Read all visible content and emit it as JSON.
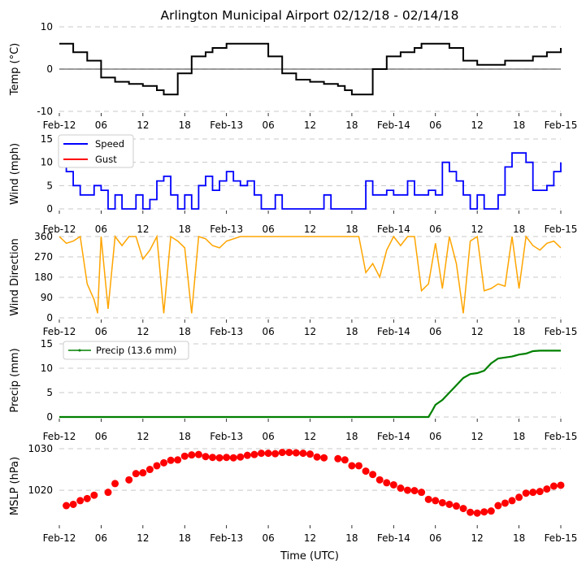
{
  "title": "Arlington Municipal Airport 02/12/18 - 02/14/18",
  "xlabel": "Time (UTC)",
  "time_ticks": [
    "Feb-12",
    "06",
    "12",
    "18",
    "Feb-13",
    "06",
    "12",
    "18",
    "Feb-14",
    "06",
    "12",
    "18",
    "Feb-15"
  ],
  "colors": {
    "temp": "#000000",
    "speed": "#0000ff",
    "gust": "#ff0000",
    "dir": "#ffa500",
    "precip": "#008000",
    "mslp": "#ff0000",
    "grid": "#c8c8c8"
  },
  "chart_data": [
    {
      "type": "line",
      "id": "temp",
      "ylabel": "Temp (°C)",
      "ylim": [
        -10,
        10
      ],
      "yticks": [
        -10,
        0,
        10
      ],
      "hours": [
        0,
        2,
        4,
        6,
        8,
        10,
        12,
        14,
        15,
        17,
        19,
        21,
        22,
        24,
        26,
        28,
        30,
        32,
        34,
        36,
        38,
        40,
        41,
        42,
        43,
        45,
        47,
        49,
        51,
        52,
        54,
        56,
        58,
        60,
        62,
        64,
        66,
        68,
        70,
        72
      ],
      "values": [
        6,
        4,
        2,
        -2,
        -3,
        -3.5,
        -4,
        -5,
        -6,
        -1,
        3,
        4,
        5,
        6,
        6,
        6,
        3,
        -1,
        -2.5,
        -3,
        -3.5,
        -4,
        -5,
        -6,
        -6,
        0,
        3,
        4,
        5,
        6,
        6,
        5,
        2,
        1,
        1,
        2,
        2,
        3,
        4,
        5
      ]
    },
    {
      "type": "line",
      "id": "wind",
      "ylabel": "Wind (mph)",
      "ylim": [
        0,
        15
      ],
      "yticks": [
        0,
        5,
        10,
        15
      ],
      "legend": [
        "Speed",
        "Gust"
      ],
      "hours": [
        0,
        1,
        2,
        3,
        4,
        5,
        6,
        7,
        8,
        9,
        10,
        11,
        12,
        13,
        14,
        15,
        16,
        17,
        18,
        19,
        20,
        21,
        22,
        23,
        24,
        25,
        26,
        27,
        28,
        29,
        30,
        31,
        32,
        33,
        34,
        35,
        36,
        37,
        38,
        39,
        40,
        41,
        42,
        43,
        44,
        45,
        46,
        47,
        48,
        49,
        50,
        51,
        52,
        53,
        54,
        55,
        56,
        57,
        58,
        59,
        60,
        61,
        62,
        63,
        64,
        65,
        66,
        67,
        68,
        69,
        70,
        71,
        72
      ],
      "series": [
        {
          "name": "Speed",
          "values": [
            12,
            8,
            5,
            3,
            3,
            5,
            4,
            0,
            3,
            0,
            0,
            3,
            0,
            2,
            6,
            7,
            3,
            0,
            3,
            0,
            5,
            7,
            4,
            6,
            8,
            6,
            5,
            6,
            3,
            0,
            0,
            3,
            0,
            0,
            0,
            0,
            0,
            0,
            3,
            0,
            0,
            0,
            0,
            0,
            6,
            3,
            3,
            4,
            3,
            3,
            6,
            3,
            3,
            4,
            3,
            10,
            8,
            6,
            3,
            0,
            3,
            0,
            0,
            3,
            9,
            12,
            12,
            10,
            4,
            4,
            5,
            8,
            10
          ]
        },
        {
          "name": "Gust",
          "values": []
        }
      ]
    },
    {
      "type": "line",
      "id": "direction",
      "ylabel": "Wind Direction",
      "ylim": [
        0,
        360
      ],
      "yticks": [
        0,
        90,
        180,
        270,
        360
      ],
      "hours": [
        0,
        1,
        2,
        3,
        4,
        5,
        5.5,
        6,
        7,
        8,
        9,
        10,
        11,
        12,
        13,
        14,
        15,
        16,
        17,
        18,
        19,
        20,
        21,
        22,
        23,
        24,
        26,
        28,
        30,
        32,
        34,
        36,
        38,
        40,
        42,
        43,
        44,
        45,
        46,
        47,
        48,
        49,
        50,
        51,
        52,
        53,
        54,
        55,
        56,
        57,
        58,
        59,
        60,
        61,
        62,
        63,
        64,
        65,
        66,
        67,
        68,
        69,
        70,
        71,
        72
      ],
      "values": [
        360,
        330,
        340,
        360,
        150,
        80,
        20,
        360,
        40,
        360,
        320,
        360,
        360,
        260,
        300,
        360,
        20,
        360,
        340,
        310,
        20,
        360,
        350,
        320,
        310,
        340,
        360,
        360,
        360,
        360,
        360,
        360,
        360,
        360,
        360,
        360,
        200,
        240,
        180,
        300,
        360,
        320,
        360,
        360,
        120,
        150,
        330,
        130,
        360,
        240,
        20,
        340,
        360,
        120,
        130,
        150,
        140,
        360,
        130,
        360,
        320,
        300,
        330,
        340,
        310
      ]
    },
    {
      "type": "line",
      "id": "precip",
      "ylabel": "Precip (mm)",
      "ylim": [
        0,
        15
      ],
      "yticks": [
        0,
        5,
        10,
        15
      ],
      "legend": [
        "Precip (13.6 mm)"
      ],
      "hours": [
        0,
        53,
        53.5,
        54,
        55,
        56,
        57,
        58,
        59,
        60,
        61,
        62,
        63,
        64,
        65,
        66,
        67,
        68,
        69,
        70,
        72
      ],
      "values": [
        0,
        0,
        1.2,
        2.5,
        3.5,
        5,
        6.5,
        8,
        8.8,
        9,
        9.5,
        11,
        12,
        12.2,
        12.4,
        12.8,
        13,
        13.5,
        13.6,
        13.6,
        13.6
      ]
    },
    {
      "type": "scatter",
      "id": "mslp",
      "ylabel": "MSLP (hPa)",
      "ylim": [
        1012,
        1030
      ],
      "yticks": [
        1020,
        1030
      ],
      "hours": [
        1,
        2,
        3,
        4,
        5,
        7,
        8,
        10,
        11,
        12,
        13,
        14,
        15,
        16,
        17,
        18,
        19,
        20,
        21,
        22,
        23,
        24,
        25,
        26,
        27,
        28,
        29,
        30,
        31,
        32,
        33,
        34,
        35,
        36,
        37,
        38,
        40,
        41,
        42,
        43,
        44,
        45,
        46,
        47,
        48,
        49,
        50,
        51,
        52,
        53,
        54,
        55,
        56,
        57,
        58,
        59,
        60,
        61,
        62,
        63,
        64,
        65,
        66,
        67,
        68,
        69,
        70,
        71,
        72
      ],
      "values": [
        1016.3,
        1016.6,
        1017.5,
        1018.0,
        1018.8,
        1019.5,
        1021.6,
        1022.5,
        1024.0,
        1024.2,
        1025.0,
        1025.9,
        1026.6,
        1027.2,
        1027.3,
        1028.2,
        1028.5,
        1028.6,
        1028.1,
        1027.9,
        1027.8,
        1027.9,
        1027.8,
        1028.0,
        1028.4,
        1028.6,
        1028.9,
        1028.9,
        1028.8,
        1029.1,
        1029.1,
        1029.0,
        1028.9,
        1028.7,
        1028.0,
        1027.8,
        1027.6,
        1027.3,
        1025.9,
        1025.9,
        1024.6,
        1023.8,
        1022.5,
        1021.8,
        1021.3,
        1020.5,
        1020.0,
        1019.9,
        1019.5,
        1017.8,
        1017.5,
        1017.0,
        1016.6,
        1016.2,
        1015.6,
        1014.7,
        1014.5,
        1014.8,
        1015.0,
        1016.3,
        1016.9,
        1017.5,
        1018.3,
        1019.3,
        1019.5,
        1019.7,
        1020.3,
        1021.0,
        1021.2
      ]
    }
  ]
}
